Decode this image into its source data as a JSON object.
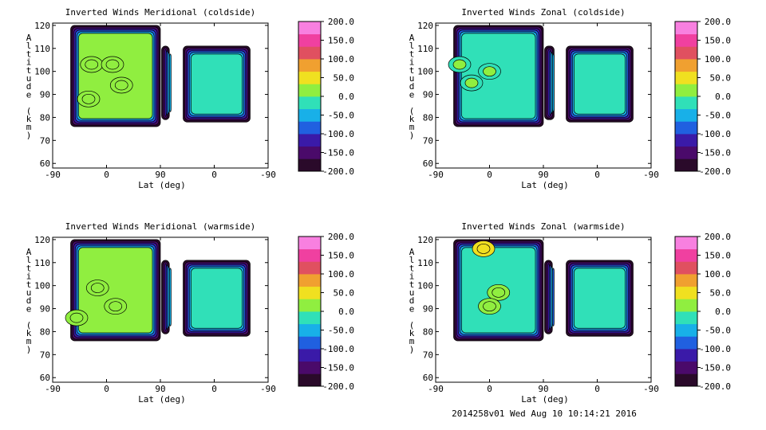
{
  "footer": "2014258v01 Wed Aug 10 10:14:21 2016",
  "colorbar": {
    "ticks": [
      "200.0",
      "150.0",
      "100.0",
      "50.0",
      "0.0",
      "-50.0",
      "-100.0",
      "-150.0",
      "-200.0"
    ],
    "colors": [
      "#2a0a2a",
      "#4a0a6a",
      "#3a1aa8",
      "#2060e0",
      "#18b0e8",
      "#30e0b8",
      "#90ee40",
      "#f0e020",
      "#f0a030",
      "#e05060",
      "#f040a0",
      "#f880e0"
    ]
  },
  "chart_data": [
    {
      "type": "heatmap",
      "title": "Inverted Winds Meridional (coldside)",
      "xlabel": "Lat (deg)",
      "ylabel": "Altitude (km)",
      "x_ticks": [
        "-90",
        "0",
        "90",
        "0",
        "-90"
      ],
      "y_ticks": [
        "60",
        "70",
        "80",
        "90",
        "100",
        "110",
        "120"
      ],
      "ylim": [
        58,
        121
      ],
      "colorbar_range": [
        -200,
        200
      ],
      "regions": [
        {
          "lat_range": [
            -60,
            90
          ],
          "alt_range": [
            76,
            120
          ],
          "dominant_value": 0
        },
        {
          "lat_range": [
            88,
            75
          ],
          "alt_range": [
            79,
            111
          ],
          "dominant_value": -50
        },
        {
          "lat_range": [
            52,
            -60
          ],
          "alt_range": [
            78,
            111
          ],
          "dominant_value": -30
        }
      ],
      "maxima": [
        {
          "lat": -25,
          "alt": 103,
          "value": 25
        },
        {
          "lat": 25,
          "alt": 94,
          "value": 30
        },
        {
          "lat": 10,
          "alt": 103,
          "value": 20
        },
        {
          "lat": -30,
          "alt": 88,
          "value": 20
        }
      ]
    },
    {
      "type": "heatmap",
      "title": "Inverted Winds Zonal (coldside)",
      "xlabel": "Lat (deg)",
      "ylabel": "Altitude (km)",
      "x_ticks": [
        "-90",
        "0",
        "90",
        "0",
        "-90"
      ],
      "y_ticks": [
        "60",
        "70",
        "80",
        "90",
        "100",
        "110",
        "120"
      ],
      "ylim": [
        58,
        121
      ],
      "colorbar_range": [
        -200,
        200
      ],
      "regions": [
        {
          "lat_range": [
            -60,
            90
          ],
          "alt_range": [
            76,
            120
          ],
          "dominant_value": -10
        },
        {
          "lat_range": [
            88,
            72
          ],
          "alt_range": [
            79,
            111
          ],
          "dominant_value": -60
        },
        {
          "lat_range": [
            52,
            -60
          ],
          "alt_range": [
            78,
            111
          ],
          "dominant_value": -20
        }
      ],
      "maxima": [
        {
          "lat": 0,
          "alt": 100,
          "value": 10
        },
        {
          "lat": -30,
          "alt": 95,
          "value": 5
        },
        {
          "lat": -50,
          "alt": 103,
          "value": 10
        }
      ]
    },
    {
      "type": "heatmap",
      "title": "Inverted Winds Meridional (warmside)",
      "xlabel": "Lat (deg)",
      "ylabel": "Altitude (km)",
      "x_ticks": [
        "-90",
        "0",
        "90",
        "0",
        "-90"
      ],
      "y_ticks": [
        "60",
        "70",
        "80",
        "90",
        "100",
        "110",
        "120"
      ],
      "ylim": [
        58,
        121
      ],
      "colorbar_range": [
        -200,
        200
      ],
      "regions": [
        {
          "lat_range": [
            -60,
            90
          ],
          "alt_range": [
            76,
            120
          ],
          "dominant_value": 0
        },
        {
          "lat_range": [
            88,
            75
          ],
          "alt_range": [
            79,
            111
          ],
          "dominant_value": -60
        },
        {
          "lat_range": [
            52,
            -60
          ],
          "alt_range": [
            78,
            111
          ],
          "dominant_value": -20
        }
      ],
      "maxima": [
        {
          "lat": -15,
          "alt": 99,
          "value": 30
        },
        {
          "lat": 15,
          "alt": 91,
          "value": 25
        },
        {
          "lat": -50,
          "alt": 86,
          "value": 20
        }
      ]
    },
    {
      "type": "heatmap",
      "title": "Inverted Winds Zonal (warmside)",
      "xlabel": "Lat (deg)",
      "ylabel": "Altitude (km)",
      "x_ticks": [
        "-90",
        "0",
        "90",
        "0",
        "-90"
      ],
      "y_ticks": [
        "60",
        "70",
        "80",
        "90",
        "100",
        "110",
        "120"
      ],
      "ylim": [
        58,
        121
      ],
      "colorbar_range": [
        -200,
        200
      ],
      "regions": [
        {
          "lat_range": [
            -60,
            90
          ],
          "alt_range": [
            76,
            120
          ],
          "dominant_value": -10
        },
        {
          "lat_range": [
            88,
            75
          ],
          "alt_range": [
            79,
            111
          ],
          "dominant_value": -80
        },
        {
          "lat_range": [
            52,
            -60
          ],
          "alt_range": [
            78,
            111
          ],
          "dominant_value": -30
        }
      ],
      "maxima": [
        {
          "lat": -10,
          "alt": 116,
          "value": 60
        },
        {
          "lat": 15,
          "alt": 97,
          "value": 30
        },
        {
          "lat": 0,
          "alt": 91,
          "value": 20
        }
      ]
    }
  ]
}
